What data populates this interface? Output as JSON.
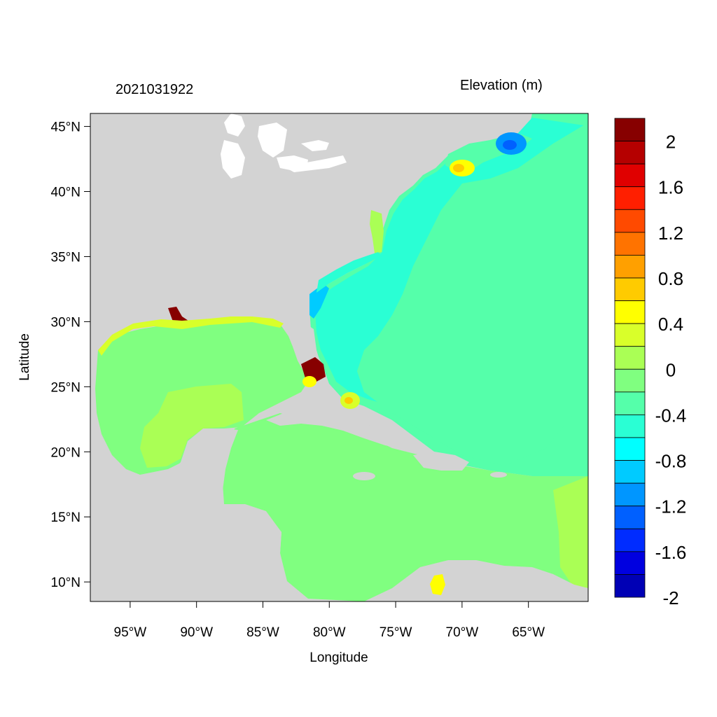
{
  "header": {
    "timestamp": "2021031922",
    "variable_label": "Elevation (m)"
  },
  "axes": {
    "xlabel": "Longitude",
    "ylabel": "Latitude",
    "lon_range": [
      -98,
      -60.5
    ],
    "lat_range": [
      8.5,
      46
    ],
    "lon_ticks": [
      {
        "value": -95,
        "label": "95°W"
      },
      {
        "value": -90,
        "label": "90°W"
      },
      {
        "value": -85,
        "label": "85°W"
      },
      {
        "value": -80,
        "label": "80°W"
      },
      {
        "value": -75,
        "label": "75°W"
      },
      {
        "value": -70,
        "label": "70°W"
      },
      {
        "value": -65,
        "label": "65°W"
      }
    ],
    "lat_ticks": [
      {
        "value": 45,
        "label": "45°N"
      },
      {
        "value": 40,
        "label": "40°N"
      },
      {
        "value": 35,
        "label": "35°N"
      },
      {
        "value": 30,
        "label": "30°N"
      },
      {
        "value": 25,
        "label": "25°N"
      },
      {
        "value": 20,
        "label": "20°N"
      },
      {
        "value": 15,
        "label": "15°N"
      },
      {
        "value": 10,
        "label": "10°N"
      }
    ]
  },
  "colorbar": {
    "colors": [
      "#870000",
      "#b50000",
      "#e00000",
      "#ff1f00",
      "#ff4a00",
      "#ff7300",
      "#ffa000",
      "#ffcb00",
      "#ffff00",
      "#d9ff2a",
      "#aaff55",
      "#80ff80",
      "#55ffaa",
      "#2affd4",
      "#00ffff",
      "#00cbff",
      "#0096ff",
      "#0060ff",
      "#002cff",
      "#0000e0",
      "#0000b5"
    ],
    "labels": [
      "2",
      "1.6",
      "1.2",
      "0.8",
      "0.4",
      "0",
      "-0.4",
      "-0.8",
      "-1.2",
      "-1.6",
      "-2"
    ]
  },
  "colors": {
    "land": "#d3d3d3",
    "lakes": "#ffffff",
    "open_atlantic": "#55ffaa",
    "shelf": "#2affd4",
    "gulf_caribbean": "#80ff80",
    "slight_positive": "#aaff55",
    "surge_high": "#870000"
  }
}
